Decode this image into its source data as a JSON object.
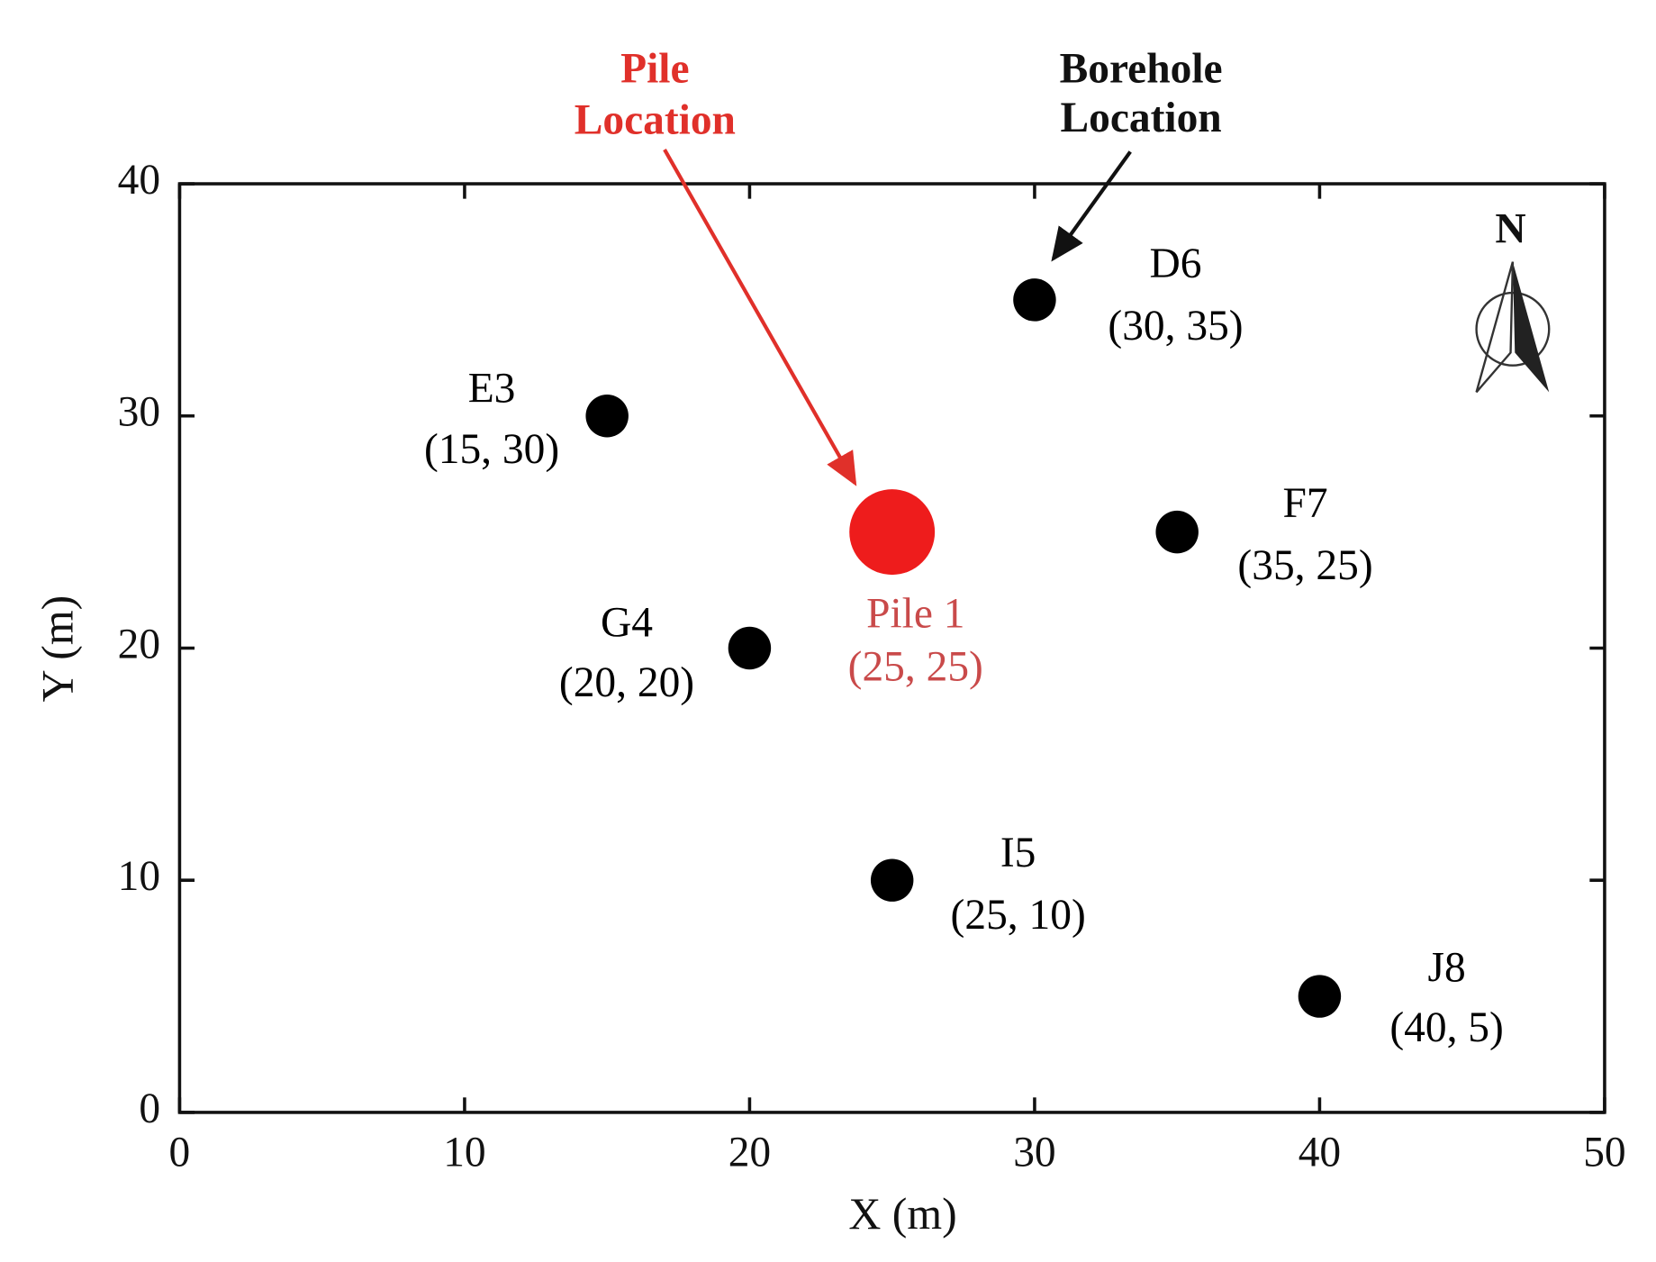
{
  "chart_data": {
    "type": "scatter",
    "xlabel": "X (m)",
    "ylabel": "Y (m)",
    "xlim": [
      0,
      50
    ],
    "ylim": [
      0,
      40
    ],
    "xticks": [
      0,
      10,
      20,
      30,
      40,
      50
    ],
    "yticks": [
      0,
      10,
      20,
      30,
      40
    ],
    "series": [
      {
        "color": "#000000",
        "labels": [
          "E3",
          "D6",
          "F7",
          "G4",
          "I5",
          "J8"
        ],
        "x": [
          15,
          30,
          35,
          20,
          25,
          40
        ],
        "values": [
          30,
          35,
          25,
          20,
          10,
          5
        ],
        "value_labels": [
          "(15, 30)",
          "(30, 35)",
          "(35, 25)",
          "(20, 20)",
          "(25, 10)",
          "(40, 5)"
        ]
      },
      {
        "color": "#ee1c1c",
        "label_color": "#c94a4a",
        "labels": [
          "Pile 1"
        ],
        "x": [
          25
        ],
        "values": [
          25
        ],
        "value_labels": [
          "(25, 25)"
        ]
      }
    ],
    "annotations": [
      {
        "lines": [
          "Pile",
          "Location"
        ],
        "color": "#e0302a"
      },
      {
        "lines": [
          "Borehole",
          "Location"
        ],
        "color": "#111111"
      }
    ],
    "north_label": "N"
  }
}
